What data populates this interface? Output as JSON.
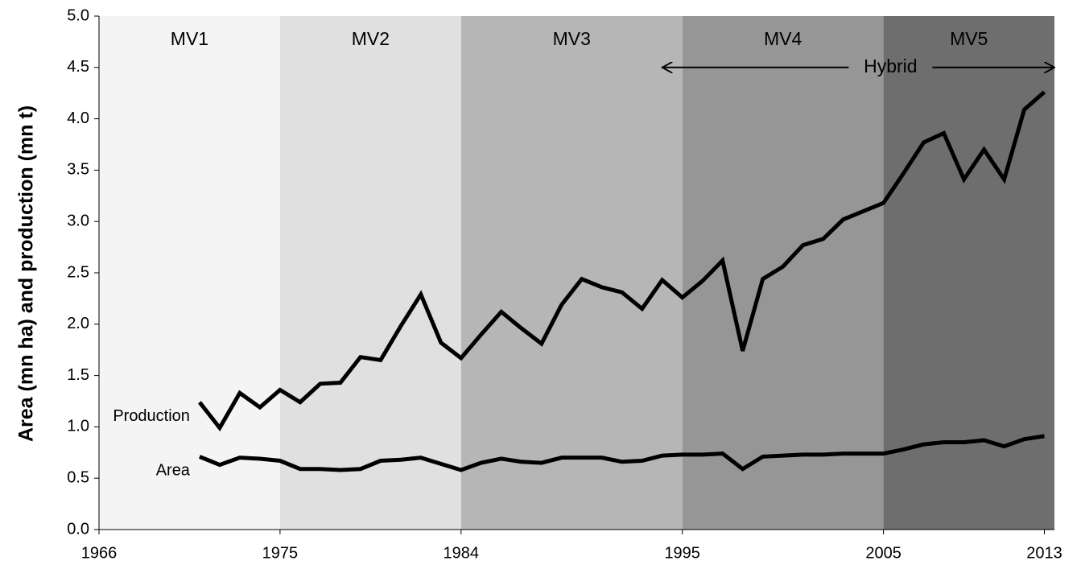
{
  "chart_data": {
    "type": "line",
    "y_axis_label": "Area (mn ha) and production (mn t)",
    "x": [
      1971,
      1972,
      1973,
      1974,
      1975,
      1976,
      1977,
      1978,
      1979,
      1980,
      1981,
      1982,
      1983,
      1984,
      1985,
      1986,
      1987,
      1988,
      1989,
      1990,
      1991,
      1992,
      1993,
      1994,
      1995,
      1996,
      1997,
      1998,
      1999,
      2000,
      2001,
      2002,
      2003,
      2004,
      2005,
      2006,
      2007,
      2008,
      2009,
      2010,
      2011,
      2012,
      2013
    ],
    "series": [
      {
        "name": "Production",
        "color": "#000000",
        "values": [
          1.24,
          0.99,
          1.33,
          1.19,
          1.36,
          1.24,
          1.42,
          1.43,
          1.68,
          1.65,
          1.98,
          2.29,
          1.82,
          1.67,
          1.9,
          2.12,
          1.96,
          1.81,
          2.19,
          2.44,
          2.36,
          2.31,
          2.15,
          2.43,
          2.26,
          2.42,
          2.62,
          1.74,
          2.44,
          2.56,
          2.77,
          2.83,
          3.02,
          3.1,
          3.18,
          3.47,
          3.77,
          3.86,
          3.41,
          3.7,
          3.41,
          4.09,
          4.26
        ]
      },
      {
        "name": "Area",
        "color": "#000000",
        "values": [
          0.71,
          0.63,
          0.7,
          0.69,
          0.67,
          0.59,
          0.59,
          0.58,
          0.59,
          0.67,
          0.68,
          0.7,
          0.64,
          0.58,
          0.65,
          0.69,
          0.66,
          0.65,
          0.7,
          0.7,
          0.7,
          0.66,
          0.67,
          0.72,
          0.73,
          0.73,
          0.74,
          0.59,
          0.71,
          0.72,
          0.73,
          0.73,
          0.74,
          0.74,
          0.74,
          0.78,
          0.83,
          0.85,
          0.85,
          0.87,
          0.81,
          0.88,
          0.91
        ]
      }
    ],
    "xlim": [
      1966,
      2013.5
    ],
    "xticks": [
      1966,
      1975,
      1984,
      1995,
      2005,
      2013
    ],
    "ylim": [
      0,
      5
    ],
    "yticks": [
      {
        "value": 0,
        "label": "0.0"
      },
      {
        "value": 0.5,
        "label": "0.5"
      },
      {
        "value": 1,
        "label": "1.0"
      },
      {
        "value": 1.5,
        "label": "1.5"
      },
      {
        "value": 2,
        "label": "2.0"
      },
      {
        "value": 2.5,
        "label": "2.5"
      },
      {
        "value": 3,
        "label": "3.0"
      },
      {
        "value": 3.5,
        "label": "3.5"
      },
      {
        "value": 4,
        "label": "4.0"
      },
      {
        "value": 4.5,
        "label": "4.5"
      },
      {
        "value": 5,
        "label": "5.0"
      }
    ],
    "bands": [
      {
        "label": "MV1",
        "start": 1966,
        "end": 1975,
        "color": "#f4f4f4"
      },
      {
        "label": "MV2",
        "start": 1975,
        "end": 1984,
        "color": "#e0e0e0"
      },
      {
        "label": "MV3",
        "start": 1984,
        "end": 1995,
        "color": "#b6b6b6"
      },
      {
        "label": "MV4",
        "start": 1995,
        "end": 2005,
        "color": "#969696"
      },
      {
        "label": "MV5",
        "start": 2005,
        "end": 2013.5,
        "color": "#6e6e6e"
      }
    ],
    "annotation": {
      "text": "Hybrid",
      "start": 1994,
      "end": 2013.5,
      "y": 4.5
    }
  }
}
